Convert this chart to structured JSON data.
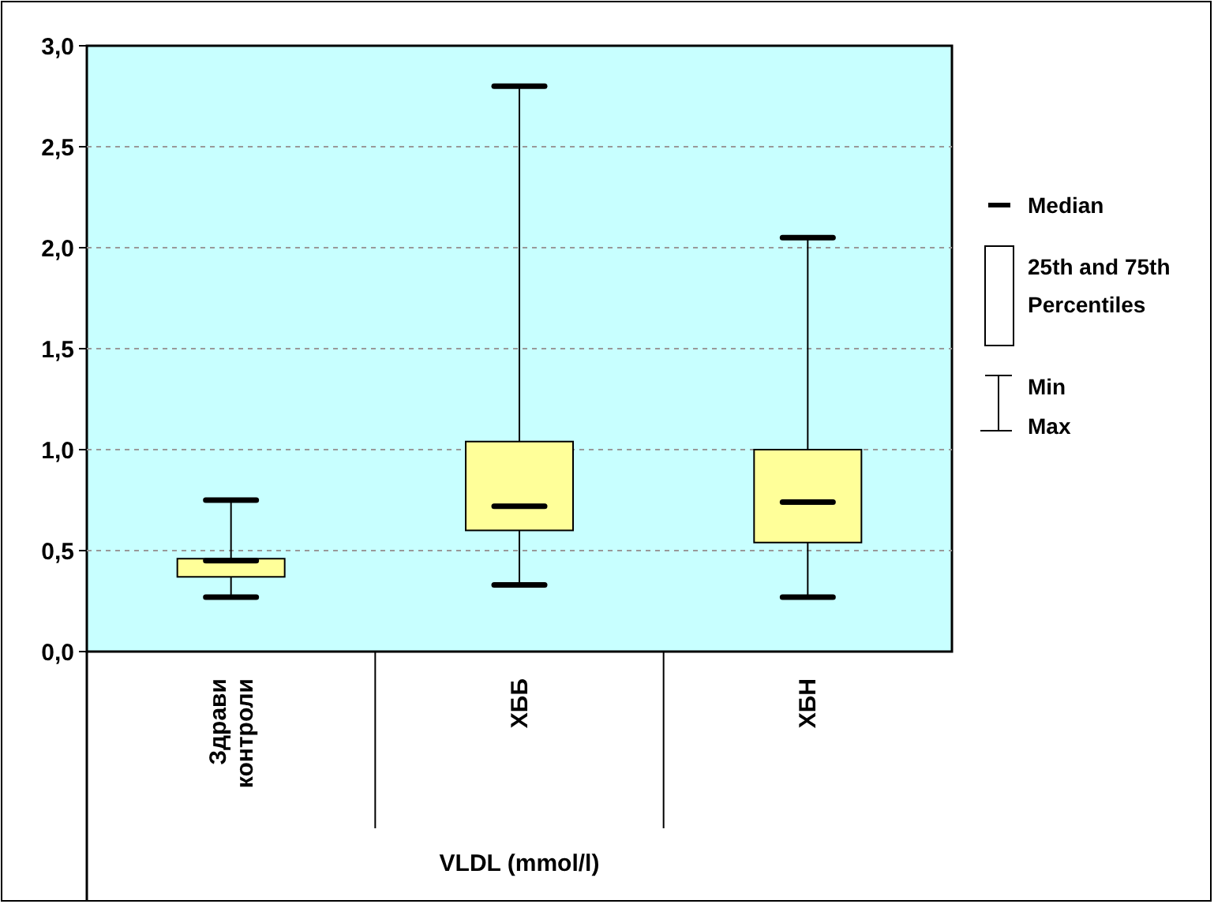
{
  "chart_data": {
    "type": "box",
    "xlabel": "VLDL (mmol/l)",
    "categories": [
      "Здрави контроли",
      "ХББ",
      "ХБН"
    ],
    "boxes": [
      {
        "low": 0.27,
        "q1": 0.37,
        "median": 0.45,
        "q3": 0.46,
        "high": 0.75
      },
      {
        "low": 0.33,
        "q1": 0.6,
        "median": 0.72,
        "q3": 1.04,
        "high": 2.8
      },
      {
        "low": 0.27,
        "q1": 0.54,
        "median": 0.74,
        "q3": 1.0,
        "high": 2.05
      }
    ],
    "color": "#ffff99",
    "ylim": [
      0,
      3
    ],
    "yticks": [
      {
        "value": 0,
        "label": "0,0"
      },
      {
        "value": 0.5,
        "label": "0,5"
      },
      {
        "value": 1,
        "label": "1,0"
      },
      {
        "value": 1.5,
        "label": "1,5"
      },
      {
        "value": 2,
        "label": "2,0"
      },
      {
        "value": 2.5,
        "label": "2,5"
      },
      {
        "value": 3,
        "label": "3,0"
      }
    ],
    "grid": "y",
    "annotations": [
      "Median",
      "25th and 75th Percentiles",
      "Min",
      "Max"
    ]
  }
}
